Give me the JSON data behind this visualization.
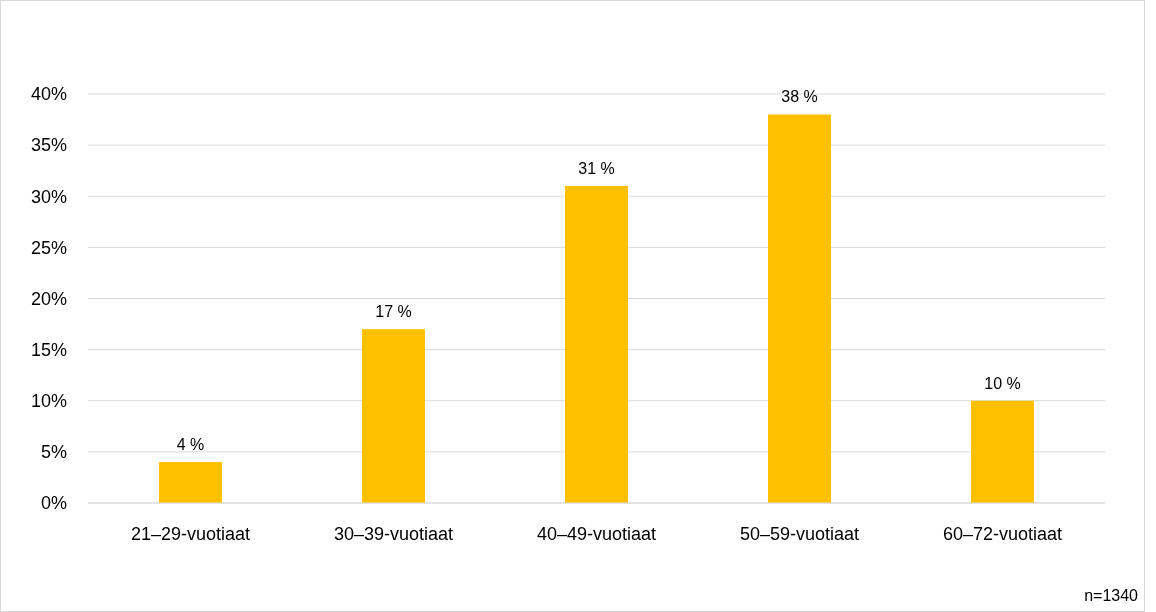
{
  "chart_data": {
    "type": "bar",
    "categories": [
      "21–29-vuotiaat",
      "30–39-vuotiaat",
      "40–49-vuotiaat",
      "50–59-vuotiaat",
      "60–72-vuotiaat"
    ],
    "values": [
      4,
      17,
      31,
      38,
      10
    ],
    "value_labels": [
      "4 %",
      "17 %",
      "31 %",
      "38 %",
      "10 %"
    ],
    "color": "#ffc000",
    "ylim": [
      0,
      40
    ],
    "yticks": [
      {
        "value": 0,
        "label": "0%"
      },
      {
        "value": 5,
        "label": "5%"
      },
      {
        "value": 10,
        "label": "10%"
      },
      {
        "value": 15,
        "label": "15%"
      },
      {
        "value": 20,
        "label": "20%"
      },
      {
        "value": 25,
        "label": "25%"
      },
      {
        "value": 30,
        "label": "30%"
      },
      {
        "value": 35,
        "label": "35%"
      },
      {
        "value": 40,
        "label": "40%"
      }
    ],
    "grid": "y",
    "annotations": [
      "n=1340"
    ]
  }
}
